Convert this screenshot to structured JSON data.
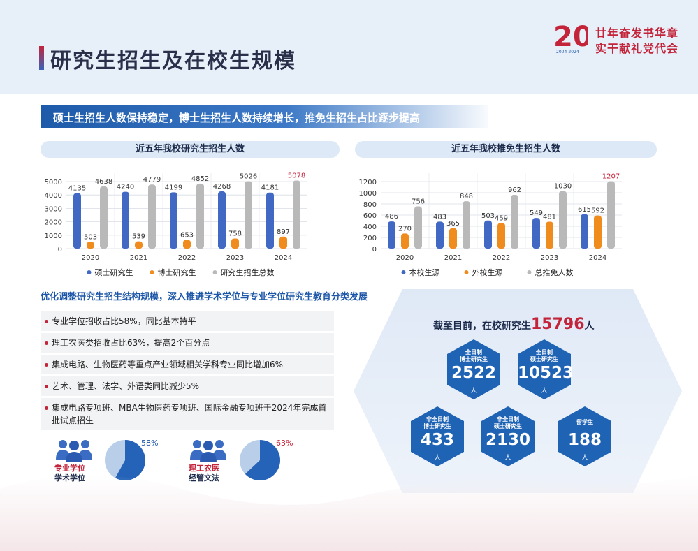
{
  "page_title": "研究生招生及在校生规模",
  "logo": {
    "line1": "廿年奋发书华章",
    "line2": "实干献礼党代会",
    "mark_text": "20",
    "mark_sub": "2004-2024"
  },
  "subtitle": "硕士生招生人数保持稳定，博士生招生人数持续增长，推免生招生占比逐步提高",
  "colors": {
    "blue": "#4169c4",
    "orange": "#f08c1e",
    "gray": "#b9b9b9",
    "red": "#c3243a",
    "dark_blue": "#1c56a8"
  },
  "chart_data": [
    {
      "type": "bar",
      "title": "近五年我校研究生招生人数",
      "categories": [
        "2020",
        "2021",
        "2022",
        "2023",
        "2024"
      ],
      "series": [
        {
          "name": "硕士研究生",
          "values": [
            4135,
            4240,
            4199,
            4268,
            4181
          ],
          "labels": [
            "4135",
            "4240",
            "4199",
            "4268",
            "4181"
          ]
        },
        {
          "name": "博士研究生",
          "values": [
            503,
            539,
            653,
            758,
            897
          ],
          "labels": [
            "503",
            "539",
            "653",
            "758",
            "897"
          ]
        },
        {
          "name": "研究生招生总数",
          "values": [
            4638,
            4779,
            4852,
            5026,
            5078
          ],
          "labels": [
            "4638",
            "4779",
            "4852",
            "5026",
            "5078"
          ]
        }
      ],
      "ylim": [
        0,
        5000
      ],
      "yticks": [
        "0",
        "1000",
        "2000",
        "3000",
        "4000",
        "5000"
      ],
      "grid": true,
      "legend": "bottom"
    },
    {
      "type": "bar",
      "title": "近五年我校推免生招生人数",
      "categories": [
        "2020",
        "2021",
        "2022",
        "2023",
        "2024"
      ],
      "series": [
        {
          "name": "本校生源",
          "values": [
            486,
            483,
            503,
            549,
            615
          ],
          "labels": [
            "486",
            "483",
            "503",
            "549",
            "615"
          ]
        },
        {
          "name": "外校生源",
          "values": [
            270,
            365,
            459,
            481,
            592
          ],
          "labels": [
            "270",
            "365",
            "459",
            "481",
            "592"
          ]
        },
        {
          "name": "总推免人数",
          "values": [
            756,
            848,
            962,
            1030,
            1207
          ],
          "labels": [
            "756",
            "848",
            "962",
            "1030",
            "1207"
          ]
        }
      ],
      "ylim": [
        0,
        1200
      ],
      "yticks": [
        "0",
        "200",
        "400",
        "600",
        "800",
        "1000",
        "1200"
      ],
      "grid": true,
      "legend": "bottom"
    }
  ],
  "bullets": {
    "title": "优化调整研究生招生结构规模，深入推进学术学位与专业学位研究生教育分类发展",
    "items": [
      "专业学位招收占比58%，同比基本持平",
      "理工农医类招收占比63%，提高2个百分点",
      "集成电路、生物医药等重点产业领域相关学科专业同比增加6%",
      "艺术、管理、法学、外语类同比减少5%",
      "集成电路专项班、MBA生物医药专项班、国际金融专项班于2024年完成首批试点招生"
    ]
  },
  "pies": [
    {
      "label1": "专业学位",
      "label2": "学术学位",
      "pct_label": "58%",
      "value": 58
    },
    {
      "label1": "理工农医",
      "label2": "经管文法",
      "pct_label": "63%",
      "value": 63
    }
  ],
  "enrollment": {
    "prefix": "截至目前，在校研究生",
    "total": "15796",
    "unit": "人",
    "badges": [
      {
        "line1": "全日制",
        "line2": "博士研究生",
        "value": "2522",
        "unit": "人"
      },
      {
        "line1": "全日制",
        "line2": "硕士研究生",
        "value": "10523",
        "unit": "人"
      },
      {
        "line1": "非全日制",
        "line2": "博士研究生",
        "value": "433",
        "unit": "人"
      },
      {
        "line1": "非全日制",
        "line2": "硕士研究生",
        "value": "2130",
        "unit": "人"
      },
      {
        "line1": "留学生",
        "line2": "",
        "value": "188",
        "unit": "人"
      }
    ]
  }
}
